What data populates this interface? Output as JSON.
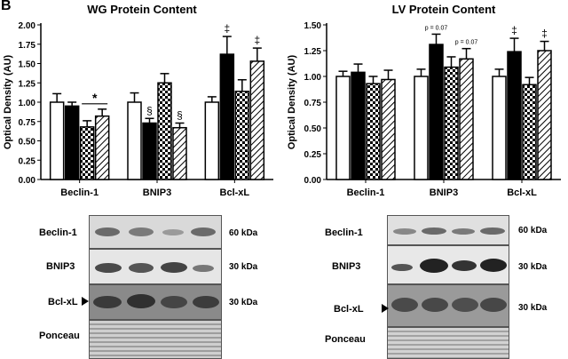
{
  "panel_letter": "B",
  "chart_data": [
    {
      "type": "bar",
      "title": "WG Protein Content",
      "ylabel": "Optical Density (AU)",
      "ylim": [
        0,
        2.0
      ],
      "yticks": [
        "0.00",
        "0.25",
        "0.50",
        "0.75",
        "1.00",
        "1.25",
        "1.50",
        "1.75",
        "2.00"
      ],
      "categories": [
        "Beclin-1",
        "BNIP3",
        "Bcl-xL"
      ],
      "series": [
        {
          "style": "white",
          "values": [
            1.0,
            1.0,
            1.0
          ],
          "errors": [
            0.11,
            0.12,
            0.07
          ]
        },
        {
          "style": "black",
          "values": [
            0.95,
            0.73,
            1.62
          ],
          "errors": [
            0.05,
            0.06,
            0.23
          ]
        },
        {
          "style": "checker",
          "values": [
            0.68,
            1.25,
            1.14
          ],
          "errors": [
            0.08,
            0.12,
            0.15
          ]
        },
        {
          "style": "hatch",
          "values": [
            0.82,
            0.67,
            1.53
          ],
          "errors": [
            0.09,
            0.06,
            0.17
          ]
        }
      ],
      "annotations": [
        {
          "text": "*",
          "category": 0,
          "series": 2,
          "bracket_to": 3
        },
        {
          "text": "§",
          "category": 1,
          "series": 1
        },
        {
          "text": "§",
          "category": 1,
          "series": 3
        },
        {
          "text": "‡",
          "category": 2,
          "series": 1
        },
        {
          "text": "‡",
          "category": 2,
          "series": 3
        }
      ]
    },
    {
      "type": "bar",
      "title": "LV Protein Content",
      "ylabel": "Optical Density (AU)",
      "ylim": [
        0,
        1.5
      ],
      "yticks": [
        "0.00",
        "0.25",
        "0.50",
        "0.75",
        "1.00",
        "1.25",
        "1.50"
      ],
      "categories": [
        "Beclin-1",
        "BNIP3",
        "Bcl-xL"
      ],
      "series": [
        {
          "style": "white",
          "values": [
            1.0,
            1.0,
            1.0
          ],
          "errors": [
            0.05,
            0.07,
            0.07
          ]
        },
        {
          "style": "black",
          "values": [
            1.04,
            1.31,
            1.24
          ],
          "errors": [
            0.08,
            0.1,
            0.13
          ]
        },
        {
          "style": "checker",
          "values": [
            0.93,
            1.09,
            0.92
          ],
          "errors": [
            0.07,
            0.1,
            0.07
          ]
        },
        {
          "style": "hatch",
          "values": [
            0.97,
            1.17,
            1.25
          ],
          "errors": [
            0.09,
            0.1,
            0.09
          ]
        }
      ],
      "annotations": [
        {
          "text": "p = 0.07",
          "category": 1,
          "series": 1,
          "small": true
        },
        {
          "text": "p = 0.07",
          "category": 1,
          "series": 3,
          "small": true
        },
        {
          "text": "‡",
          "category": 2,
          "series": 1
        },
        {
          "text": "‡",
          "category": 2,
          "series": 3
        }
      ]
    }
  ],
  "blots": {
    "left": {
      "rows": [
        {
          "label": "Beclin-1",
          "kda": "60 kDa"
        },
        {
          "label": "BNIP3",
          "kda": "30 kDa"
        },
        {
          "label": "Bcl-xL",
          "kda": "30 kDa"
        },
        {
          "label": "Ponceau",
          "kda": ""
        }
      ]
    },
    "right": {
      "rows": [
        {
          "label": "Beclin-1",
          "kda": "60 kDa"
        },
        {
          "label": "BNIP3",
          "kda": "30 kDa"
        },
        {
          "label": "Bcl-xL",
          "kda": "30 kDa"
        },
        {
          "label": "Ponceau",
          "kda": ""
        }
      ]
    }
  },
  "colors": {
    "black": "#000000",
    "white": "#ffffff",
    "blot_bg": "#d8d8d8",
    "band": "#3a3a3a"
  }
}
